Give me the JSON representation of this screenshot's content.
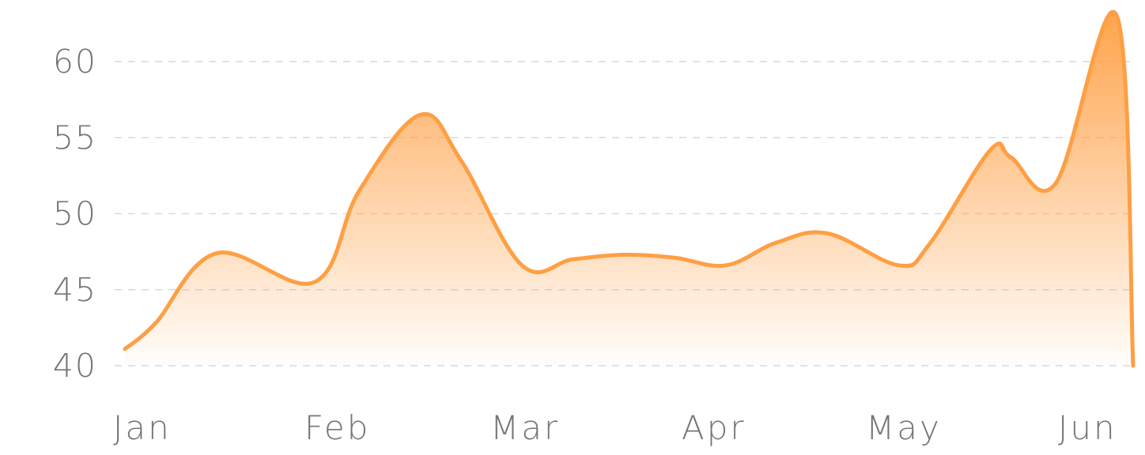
{
  "chart_data": {
    "type": "area",
    "title": "",
    "xlabel": "",
    "ylabel": "",
    "categories": [
      "Jan",
      "Feb",
      "Mar",
      "Apr",
      "May",
      "Jun"
    ],
    "ylim": [
      40,
      63
    ],
    "y_ticks": [
      40,
      45,
      50,
      55,
      60
    ],
    "grid": true,
    "legend": "none",
    "colors": {
      "line": "#FF9F43",
      "fill_top": "#FF9F43",
      "grid": "#D9D9D9",
      "tick_text": "#757575"
    },
    "series": [
      {
        "x": [
          0.05,
          0.2,
          0.5,
          0.98,
          1.2,
          1.5,
          1.7,
          2.0,
          2.25,
          2.5,
          2.75,
          3.0,
          3.25,
          3.5,
          3.85,
          4.0,
          4.3,
          4.4,
          4.62,
          4.92,
          5.0
        ],
        "values": [
          41.1,
          42.8,
          47.4,
          45.5,
          51.5,
          56.5,
          53.5,
          46.6,
          47.0,
          47.3,
          47.1,
          46.6,
          48.1,
          48.7,
          46.6,
          48.0,
          54.2,
          53.7,
          52.0,
          63.0,
          40.0
        ]
      }
    ]
  }
}
